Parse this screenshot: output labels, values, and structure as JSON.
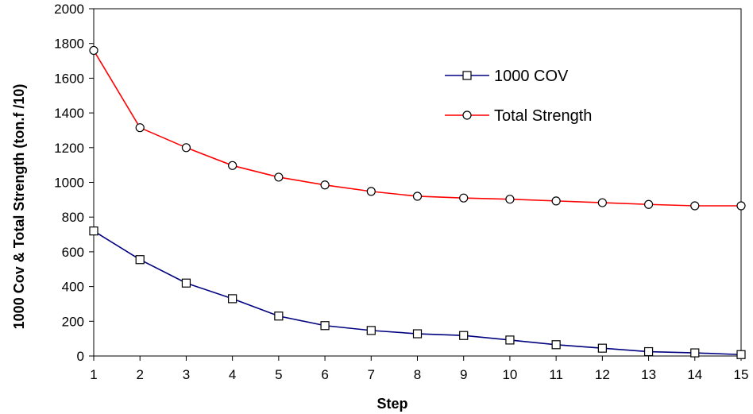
{
  "chart_data": {
    "type": "line",
    "title": "",
    "xlabel": "Step",
    "ylabel": "1000 Cov &  Total Strength (ton.f /10)",
    "x": [
      1,
      2,
      3,
      4,
      5,
      6,
      7,
      8,
      9,
      10,
      11,
      12,
      13,
      14,
      15
    ],
    "xlim": [
      1,
      15
    ],
    "ylim": [
      0,
      2000
    ],
    "y_ticks": [
      0,
      200,
      400,
      600,
      800,
      1000,
      1200,
      1400,
      1600,
      1800,
      2000
    ],
    "x_ticks": [
      "1",
      "2",
      "3",
      "4",
      "5",
      "6",
      "7",
      "8",
      "9",
      "10",
      "11",
      "12",
      "13",
      "14",
      "15"
    ],
    "grid": false,
    "legend_position": "top-right",
    "series": [
      {
        "name": "1000 COV",
        "color": "#000080",
        "marker": "square",
        "values": [
          720,
          555,
          420,
          330,
          230,
          175,
          147,
          128,
          118,
          92,
          65,
          45,
          25,
          18,
          8
        ]
      },
      {
        "name": "Total Strength",
        "color": "#ff0000",
        "marker": "circle",
        "values": [
          1760,
          1315,
          1200,
          1097,
          1030,
          985,
          948,
          920,
          910,
          903,
          893,
          883,
          873,
          865,
          865
        ]
      }
    ]
  }
}
